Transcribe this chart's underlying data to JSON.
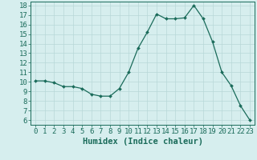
{
  "xlabel": "Humidex (Indice chaleur)",
  "x": [
    0,
    1,
    2,
    3,
    4,
    5,
    6,
    7,
    8,
    9,
    10,
    11,
    12,
    13,
    14,
    15,
    16,
    17,
    18,
    19,
    20,
    21,
    22,
    23
  ],
  "y": [
    10.1,
    10.1,
    9.9,
    9.5,
    9.5,
    9.3,
    8.7,
    8.5,
    8.5,
    9.3,
    11.0,
    13.5,
    15.2,
    17.1,
    16.6,
    16.6,
    16.7,
    18.0,
    16.6,
    14.2,
    11.0,
    9.6,
    7.5,
    6.0
  ],
  "line_color": "#1a6b5a",
  "marker": "D",
  "marker_size": 2.0,
  "bg_color": "#d6eeee",
  "grid_color": "#b8d8d8",
  "ylim_min": 5.5,
  "ylim_max": 18.4,
  "xlim_min": -0.5,
  "xlim_max": 23.5,
  "yticks": [
    6,
    7,
    8,
    9,
    10,
    11,
    12,
    13,
    14,
    15,
    16,
    17,
    18
  ],
  "xticks": [
    0,
    1,
    2,
    3,
    4,
    5,
    6,
    7,
    8,
    9,
    10,
    11,
    12,
    13,
    14,
    15,
    16,
    17,
    18,
    19,
    20,
    21,
    22,
    23
  ],
  "font_color": "#1a6b5a",
  "xlabel_fontsize": 7.5,
  "tick_fontsize": 6.5,
  "linewidth": 0.9
}
